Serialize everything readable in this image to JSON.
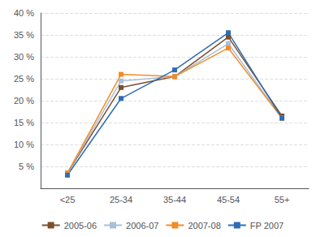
{
  "chart_data": {
    "type": "line",
    "categories": [
      "<25",
      "25-34",
      "35-44",
      "45-54",
      "55+"
    ],
    "series": [
      {
        "name": "2005-06",
        "color": "#7B4F2E",
        "values": [
          3.5,
          23.0,
          25.5,
          34.5,
          16.5
        ]
      },
      {
        "name": "2006-07",
        "color": "#A8BFD8",
        "values": [
          3.5,
          24.5,
          25.5,
          33.0,
          16.0
        ]
      },
      {
        "name": "2007-08",
        "color": "#F28C28",
        "values": [
          3.5,
          26.0,
          25.5,
          32.0,
          16.0
        ]
      },
      {
        "name": "FP 2007",
        "color": "#2E6DB4",
        "values": [
          3.0,
          20.5,
          27.0,
          35.5,
          16.0
        ]
      }
    ],
    "ylim": [
      0,
      40
    ],
    "yticks": [
      {
        "value": 5,
        "label": "5 %"
      },
      {
        "value": 10,
        "label": "10 %"
      },
      {
        "value": 15,
        "label": "15 %"
      },
      {
        "value": 20,
        "label": "20 %"
      },
      {
        "value": 25,
        "label": "25 %"
      },
      {
        "value": 30,
        "label": "30 %"
      },
      {
        "value": 35,
        "label": "35 %"
      },
      {
        "value": 40,
        "label": "40 %"
      }
    ],
    "grid": true,
    "legend": "bottom",
    "marker": "square"
  }
}
